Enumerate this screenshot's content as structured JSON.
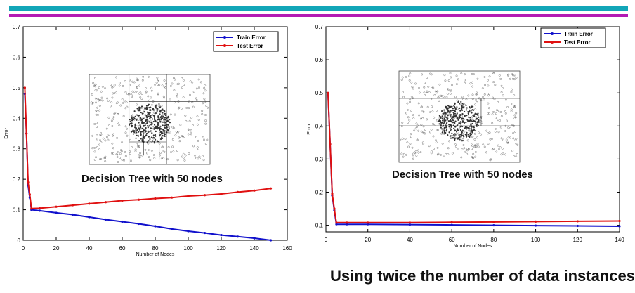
{
  "colors": {
    "band_top": "#12a6b8",
    "band_bottom": "#b31ab3",
    "train": "#1010cc",
    "test": "#e01010"
  },
  "captions": {
    "left_inset": "Decision Tree with 50 nodes",
    "right_inset": "Decision Tree with 50 nodes",
    "footnote": "Using twice the number of data instances"
  },
  "chart_data": [
    {
      "type": "line",
      "xlabel": "Number of Nodes",
      "ylabel": "Error",
      "xlim": [
        0,
        160
      ],
      "ylim": [
        0,
        0.7
      ],
      "xticks": [
        0,
        20,
        40,
        60,
        80,
        100,
        120,
        140,
        160
      ],
      "yticks": [
        0,
        0.1,
        0.2,
        0.3,
        0.4,
        0.5,
        0.6,
        0.7
      ],
      "legend_position": "top-right",
      "x": [
        1,
        2,
        3,
        4,
        5,
        10,
        20,
        30,
        40,
        50,
        60,
        70,
        80,
        90,
        100,
        110,
        120,
        130,
        140,
        150
      ],
      "series": [
        {
          "name": "Train Error",
          "color": "#1010cc",
          "values": [
            0.48,
            0.35,
            0.18,
            0.14,
            0.1,
            0.097,
            0.09,
            0.084,
            0.076,
            0.068,
            0.061,
            0.054,
            0.046,
            0.037,
            0.03,
            0.024,
            0.017,
            0.012,
            0.007,
            0.0
          ]
        },
        {
          "name": "Test Error",
          "color": "#e01010",
          "values": [
            0.5,
            0.35,
            0.19,
            0.15,
            0.104,
            0.105,
            0.11,
            0.115,
            0.12,
            0.125,
            0.13,
            0.133,
            0.137,
            0.14,
            0.145,
            0.148,
            0.152,
            0.158,
            0.163,
            0.17
          ]
        }
      ]
    },
    {
      "type": "line",
      "xlabel": "Number of Nodes",
      "ylabel": "Error",
      "xlim": [
        0,
        140
      ],
      "ylim": [
        0.08,
        0.7
      ],
      "xticks": [
        0,
        20,
        40,
        60,
        80,
        100,
        120,
        140
      ],
      "yticks": [
        0.1,
        0.2,
        0.3,
        0.4,
        0.5,
        0.6,
        0.7
      ],
      "legend_position": "top-right",
      "x": [
        1,
        2,
        3,
        4,
        5,
        10,
        20,
        40,
        60,
        80,
        100,
        120,
        140
      ],
      "series": [
        {
          "name": "Train Error",
          "color": "#1010cc",
          "values": [
            0.495,
            0.345,
            0.19,
            0.145,
            0.103,
            0.103,
            0.103,
            0.102,
            0.101,
            0.1,
            0.099,
            0.098,
            0.097
          ]
        },
        {
          "name": "Test Error",
          "color": "#e01010",
          "values": [
            0.5,
            0.345,
            0.195,
            0.15,
            0.108,
            0.108,
            0.108,
            0.108,
            0.109,
            0.11,
            0.111,
            0.112,
            0.113
          ]
        }
      ]
    }
  ]
}
